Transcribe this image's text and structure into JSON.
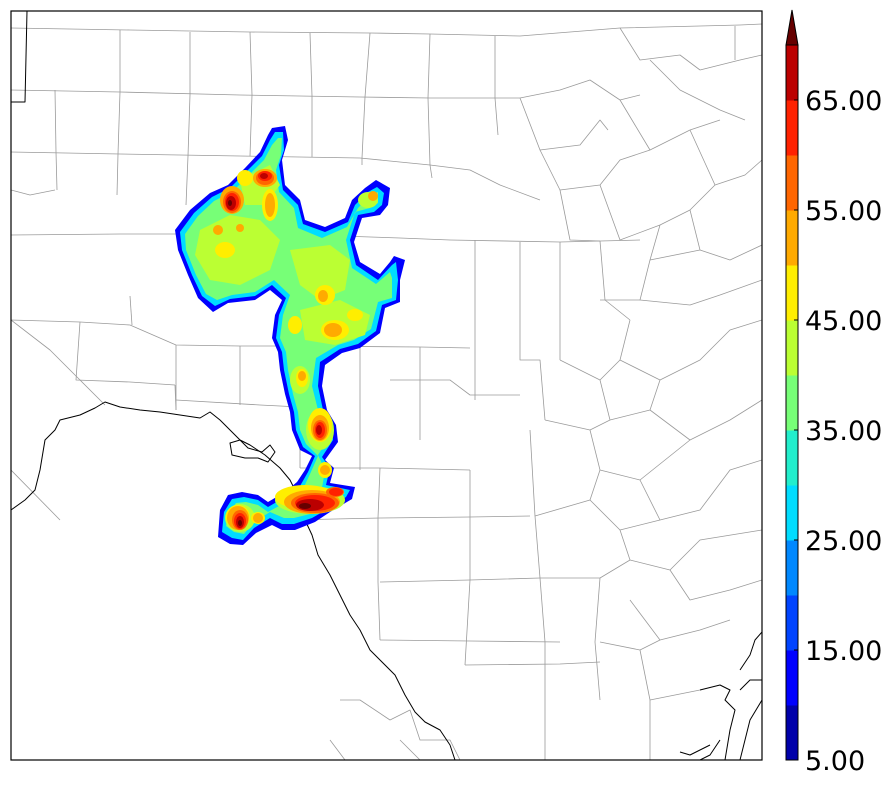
{
  "map": {
    "type": "radar-reflectivity-county-map",
    "colorbar": {
      "min": 5,
      "max": 70,
      "extend": "max",
      "bins": [
        {
          "from": 5,
          "to": 10,
          "color": "#0000aa"
        },
        {
          "from": 10,
          "to": 15,
          "color": "#0000ff"
        },
        {
          "from": 15,
          "to": 20,
          "color": "#0044ff"
        },
        {
          "from": 20,
          "to": 25,
          "color": "#0088ff"
        },
        {
          "from": 25,
          "to": 30,
          "color": "#00ddff"
        },
        {
          "from": 30,
          "to": 35,
          "color": "#22eecc"
        },
        {
          "from": 35,
          "to": 40,
          "color": "#77ff77"
        },
        {
          "from": 40,
          "to": 45,
          "color": "#bbff33"
        },
        {
          "from": 45,
          "to": 50,
          "color": "#ffee00"
        },
        {
          "from": 50,
          "to": 55,
          "color": "#ffaa00"
        },
        {
          "from": 55,
          "to": 60,
          "color": "#ff6600"
        },
        {
          "from": 60,
          "to": 65,
          "color": "#ff2200"
        },
        {
          "from": 65,
          "to": 70,
          "color": "#bb0000"
        },
        {
          "from": 70,
          "to": null,
          "color": "#660000"
        }
      ],
      "tick_labels": [
        {
          "value": 5,
          "label": "5.00"
        },
        {
          "value": 15,
          "label": "15.00"
        },
        {
          "value": 25,
          "label": "25.00"
        },
        {
          "value": 35,
          "label": "35.00"
        },
        {
          "value": 45,
          "label": "45.00"
        },
        {
          "value": 55,
          "label": "55.00"
        },
        {
          "value": 65,
          "label": "65.00"
        }
      ]
    },
    "colors": {
      "county_border": "#9a9a9a",
      "state_border": "#000000",
      "frame": "#000000",
      "background": "#ffffff"
    }
  }
}
